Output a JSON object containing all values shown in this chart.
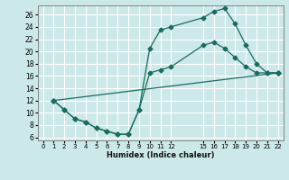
{
  "xlabel": "Humidex (Indice chaleur)",
  "bg_color": "#cce8e8",
  "grid_color": "#ffffff",
  "line_color": "#1a6b5e",
  "xlim": [
    -0.5,
    22.5
  ],
  "ylim": [
    5.5,
    27.5
  ],
  "xticks": [
    0,
    1,
    2,
    3,
    4,
    5,
    6,
    7,
    8,
    9,
    10,
    11,
    12,
    15,
    16,
    17,
    18,
    19,
    20,
    21,
    22
  ],
  "yticks": [
    6,
    8,
    10,
    12,
    14,
    16,
    18,
    20,
    22,
    24,
    26
  ],
  "line1_x": [
    1,
    2,
    3,
    4,
    5,
    6,
    7,
    8,
    9,
    10,
    11,
    12,
    15,
    16,
    17,
    18,
    19,
    20,
    21,
    22
  ],
  "line1_y": [
    12,
    10.5,
    9.0,
    8.5,
    7.5,
    7.0,
    6.5,
    6.5,
    10.5,
    20.5,
    23.5,
    24.0,
    25.5,
    26.5,
    27.0,
    24.5,
    21.0,
    18.0,
    16.5,
    16.5
  ],
  "line2_x": [
    1,
    2,
    3,
    4,
    5,
    6,
    7,
    8,
    9,
    10,
    11,
    12,
    15,
    16,
    17,
    18,
    19,
    20,
    21,
    22
  ],
  "line2_y": [
    12,
    10.5,
    9.0,
    8.5,
    7.5,
    7.0,
    6.5,
    6.5,
    10.5,
    16.5,
    17.0,
    17.5,
    21.0,
    21.5,
    20.5,
    19.0,
    17.5,
    16.5,
    16.5,
    16.5
  ],
  "line3_x": [
    1,
    22
  ],
  "line3_y": [
    12,
    16.5
  ]
}
